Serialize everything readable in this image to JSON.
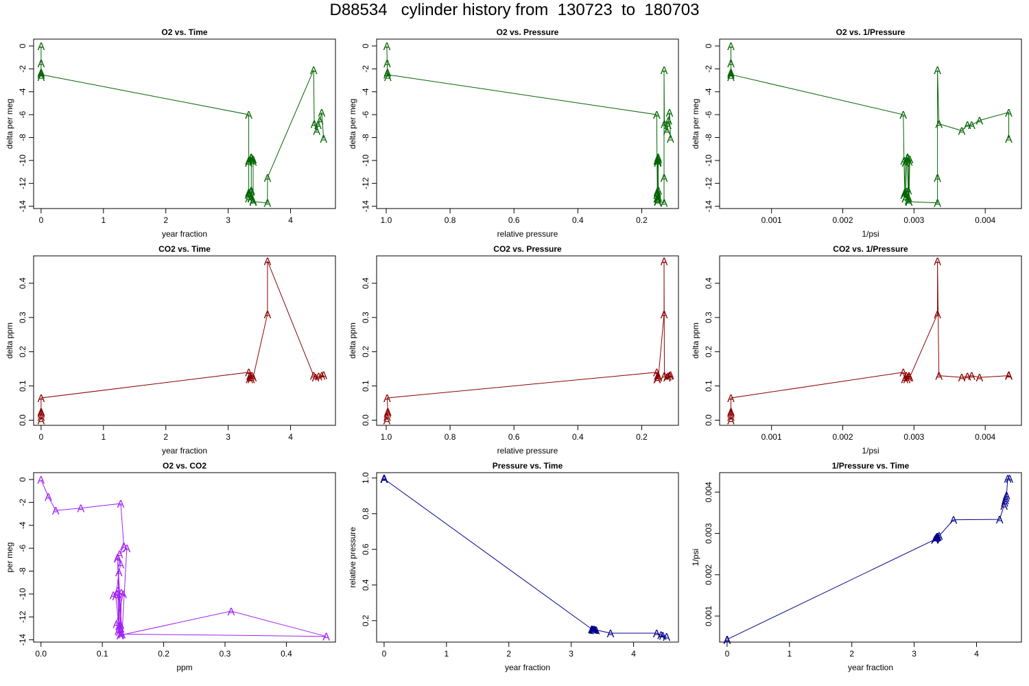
{
  "title": "D88534   cylinder history from  130723  to  180703",
  "colors": {
    "o2": "#006400",
    "co2": "#8b0000",
    "mix": "#a020f0",
    "pressure": "#00008b"
  },
  "marker_text": "A",
  "chart_data": [
    {
      "id": "o2_time",
      "type": "line",
      "title": "O2 vs. Time",
      "xlabel": "year fraction",
      "ylabel": "delta per meg",
      "xlim": [
        -0.12,
        4.72
      ],
      "ylim": [
        -14.2,
        0.6
      ],
      "x_reversed": false,
      "xticks": [
        0,
        1,
        2,
        3,
        4
      ],
      "xtick_labels": [
        "0",
        "1",
        "2",
        "3",
        "4"
      ],
      "yticks": [
        0,
        -2,
        -4,
        -6,
        -8,
        -10,
        -12,
        -14
      ],
      "ytick_labels": [
        "0",
        "-2",
        "-4",
        "-6",
        "-8",
        "-10",
        "-12",
        "-14"
      ],
      "color": "o2",
      "x": [
        0,
        0,
        0,
        0,
        0,
        3.33,
        3.33,
        3.33,
        3.33,
        3.33,
        3.33,
        3.33,
        3.37,
        3.37,
        3.37,
        3.37,
        3.37,
        3.37,
        3.37,
        3.4,
        3.4,
        3.4,
        3.4,
        3.63,
        3.63,
        4.37,
        4.38,
        4.42,
        4.44,
        4.47,
        4.5,
        4.53
      ],
      "y": [
        0,
        -1.5,
        -2.3,
        -2.7,
        -2.5,
        -6,
        -10,
        -12.8,
        -13.3,
        -13,
        -12.9,
        -10.2,
        -9.8,
        -13.2,
        -12.7,
        -13.3,
        -10,
        -9.7,
        -12.6,
        -13.5,
        -10.1,
        -9.9,
        -13.6,
        -13.7,
        -11.5,
        -2.1,
        -6.8,
        -7.4,
        -6.9,
        -6.5,
        -5.8,
        -8.1
      ]
    },
    {
      "id": "o2_pressure",
      "type": "line",
      "title": "O2 vs. Pressure",
      "xlabel": "relative pressure",
      "ylabel": "delta per meg",
      "xlim": [
        1.03,
        0.085
      ],
      "ylim": [
        -14.2,
        0.6
      ],
      "x_reversed": true,
      "xticks": [
        1.0,
        0.8,
        0.6,
        0.4,
        0.2
      ],
      "xtick_labels": [
        "1.0",
        "0.8",
        "0.6",
        "0.4",
        "0.2"
      ],
      "yticks": [
        0,
        -2,
        -4,
        -6,
        -8,
        -10,
        -12,
        -14
      ],
      "ytick_labels": [
        "0",
        "-2",
        "-4",
        "-6",
        "-8",
        "-10",
        "-12",
        "-14"
      ],
      "color": "o2",
      "x": [
        0.998,
        0.997,
        0.996,
        0.995,
        0.997,
        0.153,
        0.152,
        0.151,
        0.15,
        0.152,
        0.151,
        0.15,
        0.149,
        0.148,
        0.151,
        0.152,
        0.15,
        0.149,
        0.148,
        0.15,
        0.149,
        0.148,
        0.15,
        0.13,
        0.13,
        0.13,
        0.129,
        0.121,
        0.118,
        0.116,
        0.113,
        0.11
      ],
      "y": [
        0,
        -1.5,
        -2.3,
        -2.7,
        -2.5,
        -6,
        -10,
        -12.8,
        -13.3,
        -13,
        -12.9,
        -10.2,
        -9.8,
        -13.2,
        -12.7,
        -13.3,
        -10,
        -9.7,
        -12.6,
        -13.5,
        -10.1,
        -9.9,
        -13.6,
        -13.7,
        -11.5,
        -2.1,
        -6.8,
        -7.4,
        -6.9,
        -6.5,
        -5.8,
        -8.1
      ]
    },
    {
      "id": "o2_invp",
      "type": "line",
      "title": "O2 vs. 1/Pressure",
      "xlabel": "1/psi",
      "ylabel": "delta per meg",
      "xlim": [
        0.0002715,
        0.0045085
      ],
      "ylim": [
        -14.2,
        0.6
      ],
      "x_reversed": false,
      "xticks": [
        0.001,
        0.002,
        0.003,
        0.004
      ],
      "xtick_labels": [
        "0.001",
        "0.002",
        "0.003",
        "0.004"
      ],
      "yticks": [
        0,
        -2,
        -4,
        -6,
        -8,
        -10,
        -12,
        -14
      ],
      "ytick_labels": [
        "0",
        "-2",
        "-4",
        "-6",
        "-8",
        "-10",
        "-12",
        "-14"
      ],
      "color": "o2",
      "x": [
        0.00043,
        0.00043,
        0.00043,
        0.00043,
        0.00043,
        0.00285,
        0.00286,
        0.00287,
        0.00288,
        0.00286,
        0.00287,
        0.00288,
        0.00291,
        0.00292,
        0.00289,
        0.00288,
        0.0029,
        0.00291,
        0.00292,
        0.00292,
        0.00293,
        0.00294,
        0.00293,
        0.00333,
        0.00333,
        0.00333,
        0.00335,
        0.00367,
        0.00375,
        0.00381,
        0.00392,
        0.00433,
        0.00433
      ],
      "y": [
        0,
        -1.5,
        -2.3,
        -2.7,
        -2.5,
        -6,
        -10,
        -12.8,
        -13.3,
        -13,
        -12.9,
        -10.2,
        -9.8,
        -13.2,
        -12.7,
        -13.3,
        -10,
        -9.7,
        -12.6,
        -13.5,
        -10.1,
        -9.9,
        -13.6,
        -13.7,
        -11.5,
        -2.1,
        -6.8,
        -7.4,
        -6.9,
        -6.9,
        -6.5,
        -5.8,
        -8.1
      ]
    },
    {
      "id": "co2_time",
      "type": "line",
      "title": "CO2 vs. Time",
      "xlabel": "year fraction",
      "ylabel": "delta ppm",
      "xlim": [
        -0.12,
        4.72
      ],
      "ylim": [
        -0.015,
        0.48
      ],
      "x_reversed": false,
      "xticks": [
        0,
        1,
        2,
        3,
        4
      ],
      "xtick_labels": [
        "0",
        "1",
        "2",
        "3",
        "4"
      ],
      "yticks": [
        0,
        0.1,
        0.2,
        0.3,
        0.4
      ],
      "ytick_labels": [
        "0.0",
        "0.1",
        "0.2",
        "0.3",
        "0.4"
      ],
      "color": "co2",
      "x": [
        0,
        0,
        0,
        0,
        0,
        3.33,
        3.34,
        3.35,
        3.36,
        3.37,
        3.38,
        3.4,
        3.63,
        3.63,
        4.37,
        4.4,
        4.45,
        4.5,
        4.53
      ],
      "y": [
        0,
        0.01,
        0.02,
        0.025,
        0.065,
        0.14,
        0.12,
        0.13,
        0.125,
        0.12,
        0.13,
        0.125,
        0.31,
        0.465,
        0.13,
        0.125,
        0.128,
        0.13,
        0.132
      ]
    },
    {
      "id": "co2_pressure",
      "type": "line",
      "title": "CO2 vs. Pressure",
      "xlabel": "relative pressure",
      "ylabel": "delta ppm",
      "xlim": [
        1.03,
        0.085
      ],
      "ylim": [
        -0.015,
        0.48
      ],
      "x_reversed": true,
      "xticks": [
        1.0,
        0.8,
        0.6,
        0.4,
        0.2
      ],
      "xtick_labels": [
        "1.0",
        "0.8",
        "0.6",
        "0.4",
        "0.2"
      ],
      "yticks": [
        0,
        0.1,
        0.2,
        0.3,
        0.4
      ],
      "ytick_labels": [
        "0.0",
        "0.1",
        "0.2",
        "0.3",
        "0.4"
      ],
      "color": "co2",
      "x": [
        0.998,
        0.997,
        0.996,
        0.995,
        0.997,
        0.153,
        0.152,
        0.15,
        0.148,
        0.151,
        0.149,
        0.148,
        0.13,
        0.13,
        0.129,
        0.121,
        0.118,
        0.113,
        0.11
      ],
      "y": [
        0,
        0.01,
        0.02,
        0.025,
        0.065,
        0.14,
        0.12,
        0.13,
        0.125,
        0.12,
        0.13,
        0.125,
        0.31,
        0.465,
        0.13,
        0.125,
        0.128,
        0.13,
        0.132
      ]
    },
    {
      "id": "co2_invp",
      "type": "line",
      "title": "CO2 vs. 1/Pressure",
      "xlabel": "1/psi",
      "ylabel": "delta ppm",
      "xlim": [
        0.0002715,
        0.0045085
      ],
      "ylim": [
        -0.015,
        0.48
      ],
      "x_reversed": false,
      "xticks": [
        0.001,
        0.002,
        0.003,
        0.004
      ],
      "xtick_labels": [
        "0.001",
        "0.002",
        "0.003",
        "0.004"
      ],
      "yticks": [
        0,
        0.1,
        0.2,
        0.3,
        0.4
      ],
      "ytick_labels": [
        "0.0",
        "0.1",
        "0.2",
        "0.3",
        "0.4"
      ],
      "color": "co2",
      "x": [
        0.00043,
        0.00043,
        0.00043,
        0.00043,
        0.00043,
        0.00285,
        0.00287,
        0.00289,
        0.00292,
        0.0029,
        0.00293,
        0.00294,
        0.00333,
        0.00333,
        0.00335,
        0.00367,
        0.00375,
        0.00381,
        0.00392,
        0.00433,
        0.00433
      ],
      "y": [
        0,
        0.01,
        0.02,
        0.025,
        0.065,
        0.14,
        0.12,
        0.13,
        0.125,
        0.12,
        0.13,
        0.125,
        0.31,
        0.465,
        0.13,
        0.125,
        0.128,
        0.13,
        0.125,
        0.13,
        0.132
      ]
    },
    {
      "id": "o2_co2",
      "type": "line",
      "title": "O2 vs. CO2",
      "xlabel": "ppm",
      "ylabel": "per meg",
      "xlim": [
        -0.012,
        0.48
      ],
      "ylim": [
        -14.2,
        0.6
      ],
      "x_reversed": false,
      "xticks": [
        0,
        0.1,
        0.2,
        0.3,
        0.4
      ],
      "xtick_labels": [
        "0.0",
        "0.1",
        "0.2",
        "0.3",
        "0.4"
      ],
      "yticks": [
        0,
        -2,
        -4,
        -6,
        -8,
        -10,
        -12,
        -14
      ],
      "ytick_labels": [
        "0",
        "-2",
        "-4",
        "-6",
        "-8",
        "-10",
        "-12",
        "-14"
      ],
      "color": "mix",
      "x": [
        0,
        0.012,
        0.024,
        0.065,
        0.13,
        0.135,
        0.128,
        0.14,
        0.132,
        0.125,
        0.13,
        0.127,
        0.122,
        0.127,
        0.125,
        0.118,
        0.134,
        0.123,
        0.128,
        0.13,
        0.126,
        0.129,
        0.31,
        0.465,
        0.13,
        0.128,
        0.125,
        0.13,
        0.131
      ],
      "y": [
        0,
        -1.5,
        -2.7,
        -2.5,
        -2.1,
        -5.8,
        -6.5,
        -6,
        -13.5,
        -6.9,
        -7.4,
        -8.1,
        -10.2,
        -12.8,
        -9.7,
        -10.1,
        -10,
        -12.6,
        -13.3,
        -12.7,
        -13.2,
        -13.6,
        -11.5,
        -13.7,
        -13.5,
        -12.9,
        -6.8,
        -13,
        -9.9
      ]
    },
    {
      "id": "pressure_time",
      "type": "line",
      "title": "Pressure vs. Time",
      "xlabel": "year fraction",
      "ylabel": "relative pressure",
      "xlim": [
        -0.12,
        4.72
      ],
      "ylim": [
        0.08,
        1.03
      ],
      "x_reversed": false,
      "xticks": [
        0,
        1,
        2,
        3,
        4
      ],
      "xtick_labels": [
        "0",
        "1",
        "2",
        "3",
        "4"
      ],
      "yticks": [
        0.2,
        0.4,
        0.6,
        0.8,
        1.0
      ],
      "ytick_labels": [
        "0.2",
        "0.4",
        "0.6",
        "0.8",
        "1.0"
      ],
      "color": "pressure",
      "x": [
        0,
        0,
        0,
        0,
        0,
        3.33,
        3.34,
        3.35,
        3.36,
        3.37,
        3.38,
        3.4,
        3.63,
        4.37,
        4.44,
        4.47,
        4.53
      ],
      "y": [
        1.0,
        0.998,
        0.997,
        0.996,
        0.995,
        0.153,
        0.151,
        0.152,
        0.149,
        0.151,
        0.15,
        0.148,
        0.13,
        0.13,
        0.12,
        0.116,
        0.11
      ]
    },
    {
      "id": "invp_time",
      "type": "line",
      "title": "1/Pressure vs. Time",
      "xlabel": "year fraction",
      "ylabel": "1/psi",
      "xlim": [
        -0.12,
        4.72
      ],
      "ylim": [
        0.00037,
        0.00447
      ],
      "x_reversed": false,
      "xticks": [
        0,
        1,
        2,
        3,
        4
      ],
      "xtick_labels": [
        "0",
        "1",
        "2",
        "3",
        "4"
      ],
      "yticks": [
        0.001,
        0.002,
        0.003,
        0.004
      ],
      "ytick_labels": [
        "0.001",
        "0.002",
        "0.003",
        "0.004"
      ],
      "color": "pressure",
      "x": [
        0,
        0,
        0,
        3.33,
        3.34,
        3.35,
        3.36,
        3.37,
        3.38,
        3.4,
        3.63,
        4.37,
        4.44,
        4.45,
        4.46,
        4.47,
        4.48,
        4.5,
        4.53
      ],
      "y": [
        0.00043,
        0.000432,
        0.000435,
        0.00285,
        0.00287,
        0.00289,
        0.00291,
        0.00293,
        0.00292,
        0.00294,
        0.00333,
        0.00334,
        0.00367,
        0.00375,
        0.00381,
        0.00386,
        0.00392,
        0.00433,
        0.00433
      ]
    }
  ]
}
